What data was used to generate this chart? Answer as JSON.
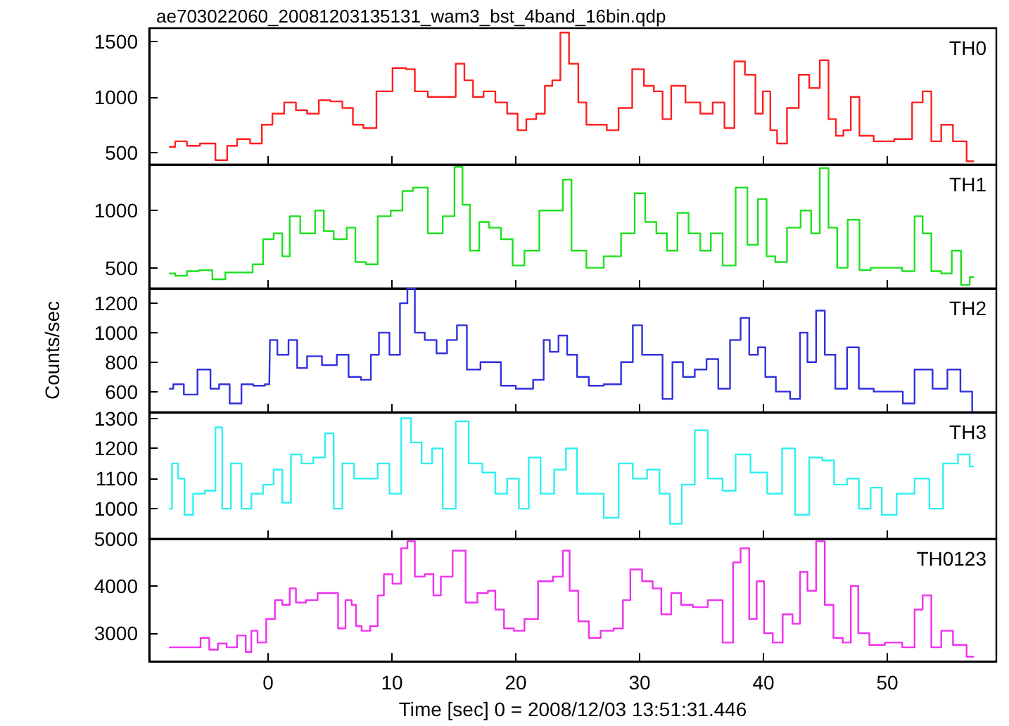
{
  "chart_data": [
    {
      "type": "step",
      "title": "ae703022060_20081203135131_wam3_bst_4band_16bin.qdp",
      "xlim": [
        -9.6,
        58.8
      ],
      "xticks": [
        0,
        10,
        20,
        30,
        40,
        50
      ],
      "ylim": [
        390,
        1620
      ],
      "yticks": [
        500,
        1000,
        1500
      ],
      "tick_labels": "y",
      "grid": false,
      "marker": "none",
      "line_style": "solid",
      "series": [
        {
          "name": "TH0",
          "color": "#ff2020",
          "x": [
            -8,
            -7,
            -6.1,
            -4.9,
            -3.6,
            -3,
            -2,
            -0.9,
            -0.1,
            0.8,
            1.8,
            2.7,
            3.6,
            4.6,
            5.5,
            6.5,
            7.2,
            8.2,
            9.3,
            10.8,
            11.5,
            12.2,
            13.6,
            14.8,
            15.5,
            16.2,
            16.9,
            17.9,
            18.8,
            19.8,
            20.5,
            21.2,
            22.1,
            22.6,
            23.3,
            23.9,
            24.7,
            25.4,
            26,
            26.9,
            27.8,
            28.8,
            30,
            30.7,
            31.6,
            32.1,
            33,
            34.4,
            35.4,
            36.4,
            37.3,
            38,
            39,
            39.7,
            40.2,
            40.9,
            41.3,
            42.5,
            43.2,
            44.2,
            44.9,
            45.6,
            46.1,
            46.8,
            47.3,
            48.2,
            49.6,
            51.5,
            52.5,
            53.2,
            53.9,
            54.8,
            55.8,
            57
          ],
          "values": [
            550,
            600,
            560,
            580,
            430,
            560,
            620,
            580,
            750,
            850,
            950,
            880,
            850,
            970,
            960,
            900,
            750,
            720,
            1050,
            1260,
            1250,
            1050,
            1000,
            1000,
            1300,
            1150,
            1000,
            1050,
            950,
            850,
            700,
            800,
            850,
            1100,
            1150,
            1580,
            1300,
            950,
            750,
            750,
            700,
            900,
            1250,
            1100,
            1050,
            800,
            1100,
            950,
            850,
            950,
            720,
            1320,
            1200,
            850,
            1050,
            700,
            580,
            900,
            1200,
            1080,
            1330,
            800,
            650,
            700,
            1000,
            650,
            600,
            620,
            950,
            1050,
            600,
            750,
            600,
            420
          ]
        }
      ]
    },
    {
      "type": "step",
      "xlim": [
        -9.6,
        58.8
      ],
      "xticks": [
        0,
        10,
        20,
        30,
        40,
        50
      ],
      "ylim": [
        320,
        1400
      ],
      "yticks": [
        500,
        1000
      ],
      "tick_labels": "y",
      "grid": false,
      "marker": "none",
      "line_style": "solid",
      "series": [
        {
          "name": "TH1",
          "color": "#20e020",
          "x": [
            -8,
            -7,
            -6.1,
            -5.1,
            -3.9,
            -3,
            -1.6,
            -0.9,
            0.1,
            0.8,
            1.5,
            2,
            3.2,
            4.4,
            4.6,
            6,
            6.7,
            7.4,
            8.4,
            9.3,
            10.5,
            11.2,
            12.2,
            13.6,
            14.6,
            15.5,
            15.9,
            16.7,
            17.4,
            18.3,
            19.3,
            20.2,
            21.2,
            22.6,
            23.6,
            24,
            25,
            26.4,
            27.8,
            29.2,
            30,
            30.9,
            31.8,
            32.6,
            33.5,
            34.4,
            35.4,
            36.1,
            37.3,
            38.2,
            39.2,
            39.9,
            40.6,
            41.3,
            42.5,
            43.5,
            44.2,
            44.9,
            45.6,
            46.3,
            47.3,
            48.2,
            49.1,
            50.5,
            51.9,
            52.5,
            53.2,
            53.9,
            54.8,
            55.6,
            56.3,
            57
          ],
          "values": [
            450,
            430,
            470,
            480,
            400,
            460,
            460,
            530,
            750,
            800,
            600,
            950,
            800,
            1000,
            820,
            750,
            850,
            550,
            530,
            950,
            1000,
            1170,
            1200,
            800,
            950,
            1380,
            1050,
            650,
            900,
            850,
            750,
            520,
            650,
            1000,
            1000,
            1270,
            650,
            500,
            600,
            800,
            1150,
            900,
            800,
            650,
            980,
            800,
            650,
            800,
            520,
            1200,
            700,
            1100,
            600,
            550,
            850,
            1000,
            800,
            1370,
            850,
            500,
            920,
            480,
            500,
            500,
            470,
            950,
            800,
            470,
            450,
            650,
            350,
            420
          ]
        }
      ]
    },
    {
      "type": "step",
      "ylabel": "Counts/sec",
      "xlim": [
        -9.6,
        58.8
      ],
      "xticks": [
        0,
        10,
        20,
        30,
        40,
        50
      ],
      "ylim": [
        460,
        1300
      ],
      "yticks": [
        600,
        800,
        1000,
        1200
      ],
      "tick_labels": "y",
      "grid": false,
      "marker": "none",
      "line_style": "solid",
      "series": [
        {
          "name": "TH2",
          "color": "#3030e0",
          "x": [
            -8,
            -7.3,
            -6.3,
            -5.1,
            -4.2,
            -3.7,
            -2.5,
            -1.8,
            -0.6,
            0.1,
            0.2,
            1.3,
            2,
            2.7,
            3.6,
            5.1,
            6,
            7,
            8,
            8.6,
            9.3,
            10.3,
            11,
            11.5,
            12.2,
            13.1,
            14.1,
            14.8,
            15.7,
            16.4,
            17.9,
            18.3,
            19.3,
            20.7,
            22.1,
            22.4,
            23.1,
            23.8,
            24.5,
            25.4,
            26.4,
            27.8,
            29.2,
            29.7,
            30.7,
            31.4,
            32.3,
            33,
            34,
            34.9,
            35.9,
            36.8,
            37.8,
            38.5,
            39.2,
            39.9,
            40.4,
            41.6,
            42.7,
            43.2,
            43.9,
            44.6,
            45.3,
            46.3,
            47.2,
            48.2,
            49.6,
            51,
            51.5,
            52.9,
            54.4,
            55.3,
            56.5,
            57.2
          ],
          "values": [
            620,
            650,
            580,
            750,
            620,
            650,
            520,
            650,
            640,
            650,
            950,
            850,
            950,
            760,
            840,
            780,
            850,
            700,
            680,
            850,
            1000,
            850,
            1200,
            1300,
            1000,
            950,
            860,
            950,
            1050,
            750,
            800,
            800,
            640,
            620,
            680,
            950,
            870,
            980,
            850,
            700,
            640,
            650,
            800,
            1050,
            850,
            850,
            550,
            800,
            700,
            750,
            820,
            620,
            950,
            1100,
            850,
            900,
            700,
            600,
            550,
            1000,
            800,
            1150,
            850,
            620,
            900,
            620,
            600,
            600,
            520,
            750,
            620,
            750,
            600,
            460
          ]
        }
      ]
    },
    {
      "type": "step",
      "xlim": [
        -9.6,
        58.8
      ],
      "xticks": [
        0,
        10,
        20,
        30,
        40,
        50
      ],
      "ylim": [
        900,
        1320
      ],
      "yticks": [
        1000,
        1100,
        1200,
        1300
      ],
      "tick_labels": "y",
      "grid": false,
      "marker": "none",
      "line_style": "solid",
      "series": [
        {
          "name": "TH3",
          "color": "#30f0f0",
          "x": [
            -8,
            -7.5,
            -7,
            -6.5,
            -5.6,
            -4.6,
            -3.9,
            -3.5,
            -2.5,
            -1.8,
            -0.9,
            0.1,
            0.8,
            1.5,
            2.2,
            3.2,
            4.1,
            5.1,
            5.5,
            6.5,
            7.4,
            8.4,
            9.3,
            10.3,
            11.2,
            11.9,
            12.9,
            13.6,
            14.6,
            15.7,
            16.7,
            17.9,
            18.8,
            19.8,
            20.7,
            21.4,
            22.6,
            23.6,
            24.5,
            25.4,
            26.4,
            27.8,
            28.8,
            30.1,
            31.1,
            32.1,
            32.8,
            34,
            34.9,
            36.1,
            37.3,
            38.2,
            39.7,
            40.9,
            42.1,
            43,
            44.4,
            45.1,
            46.3,
            47.2,
            48.2,
            49.1,
            50,
            51.5,
            52.9,
            53.9,
            55.1,
            56.3,
            57
          ],
          "values": [
            1000,
            1150,
            1100,
            980,
            1050,
            1060,
            1270,
            1000,
            1150,
            1000,
            1050,
            1080,
            1130,
            1020,
            1180,
            1150,
            1170,
            1250,
            1000,
            1150,
            1100,
            1100,
            1150,
            1050,
            1300,
            1220,
            1150,
            1200,
            1000,
            1290,
            1150,
            1120,
            1050,
            1100,
            1000,
            1170,
            1050,
            1130,
            1200,
            1050,
            1050,
            970,
            1150,
            1100,
            1130,
            1050,
            950,
            1080,
            1260,
            1100,
            1060,
            1180,
            1120,
            1050,
            1200,
            980,
            1170,
            1160,
            1080,
            1100,
            1000,
            1070,
            980,
            1050,
            1100,
            1000,
            1150,
            1180,
            1140
          ]
        }
      ]
    },
    {
      "type": "step",
      "xlabel": "Time [sec] 0 = 2008/12/03 13:51:31.446",
      "xlim": [
        -9.6,
        58.8
      ],
      "xticks": [
        0,
        10,
        20,
        30,
        40,
        50
      ],
      "ylim": [
        2400,
        5000
      ],
      "yticks": [
        3000,
        4000,
        5000
      ],
      "grid": false,
      "marker": "none",
      "line_style": "solid",
      "series": [
        {
          "name": "TH0123",
          "color": "#f030f0",
          "x": [
            -8,
            -7,
            -5.8,
            -5.1,
            -4.4,
            -3.7,
            -3,
            -2,
            -1.6,
            -1.1,
            -0.6,
            0.3,
            0.8,
            1.5,
            2,
            2.5,
            3.6,
            4.4,
            5.3,
            6,
            6.5,
            7,
            7.2,
            7.9,
            8.6,
            9.1,
            9.6,
            10.5,
            11,
            11.5,
            12.2,
            13.1,
            13.6,
            14.3,
            15.5,
            16.4,
            17.4,
            18.1,
            18.6,
            19.5,
            20.2,
            21.2,
            22.4,
            23.6,
            24,
            24.7,
            25.4,
            26.4,
            27.3,
            28.5,
            28.8,
            29.7,
            30.7,
            31.4,
            32.1,
            33,
            33.7,
            34.9,
            36.1,
            37.3,
            37.8,
            38.5,
            39.2,
            39.7,
            40.4,
            41.1,
            42,
            42.7,
            43.2,
            43.9,
            44.6,
            45.3,
            46,
            46.8,
            47.3,
            48,
            49.1,
            50.5,
            51.9,
            52.5,
            53.2,
            53.9,
            54.8,
            55.8,
            57
          ],
          "values": [
            2700,
            2700,
            2700,
            2900,
            2650,
            2780,
            2700,
            2950,
            2600,
            3050,
            2800,
            3300,
            3700,
            3600,
            3950,
            3650,
            3700,
            3850,
            3850,
            3100,
            3700,
            3600,
            3150,
            3050,
            3150,
            3800,
            4250,
            4050,
            4800,
            4950,
            4200,
            4250,
            3800,
            4200,
            4750,
            3650,
            3850,
            3900,
            3500,
            3100,
            3050,
            3300,
            4100,
            4200,
            4750,
            3900,
            3250,
            2900,
            3050,
            3100,
            3700,
            4350,
            4100,
            3950,
            3400,
            3850,
            3600,
            3550,
            3700,
            2800,
            4500,
            4800,
            3300,
            4100,
            3000,
            2800,
            3400,
            3200,
            4300,
            3900,
            4950,
            3600,
            2900,
            2800,
            4000,
            3000,
            2750,
            2800,
            2700,
            3500,
            3800,
            2700,
            3050,
            2750,
            2500
          ]
        }
      ]
    }
  ]
}
